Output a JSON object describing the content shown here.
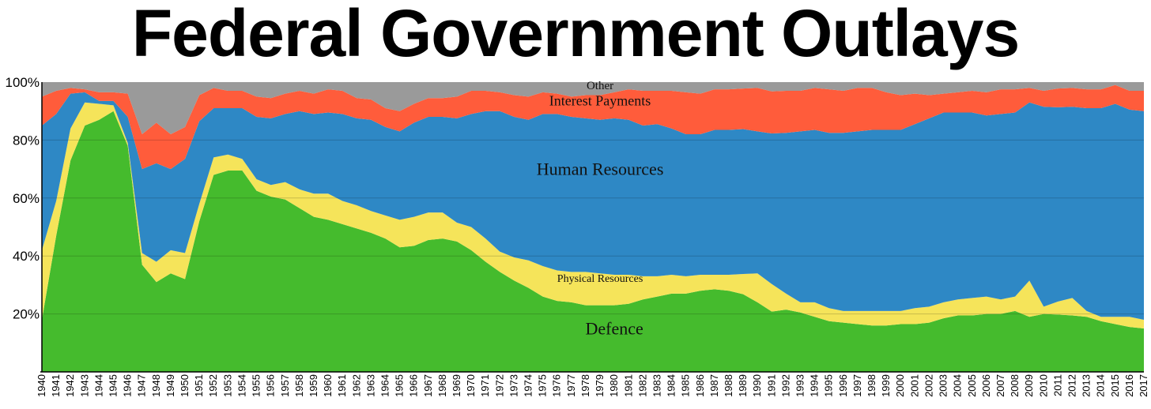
{
  "chart_data": {
    "type": "area",
    "title": "Federal Government Outlays",
    "stacked": true,
    "ylim": [
      0,
      100
    ],
    "yticks": [
      20,
      40,
      60,
      80,
      100
    ],
    "ytick_labels": [
      "20%",
      "40%",
      "60%",
      "80%",
      "100%"
    ],
    "grid": true,
    "x": [
      1940,
      1941,
      1942,
      1943,
      1944,
      1945,
      1946,
      1947,
      1948,
      1949,
      1950,
      1951,
      1952,
      1953,
      1954,
      1955,
      1956,
      1957,
      1958,
      1959,
      1960,
      1961,
      1962,
      1963,
      1964,
      1965,
      1966,
      1967,
      1968,
      1969,
      1970,
      1971,
      1972,
      1973,
      1974,
      1975,
      1976,
      1977,
      1978,
      1979,
      1980,
      1981,
      1982,
      1983,
      1984,
      1985,
      1986,
      1987,
      1988,
      1989,
      1990,
      1991,
      1992,
      1993,
      1994,
      1995,
      1996,
      1997,
      1998,
      1999,
      2000,
      2001,
      2002,
      2003,
      2004,
      2005,
      2006,
      2007,
      2008,
      2009,
      2010,
      2011,
      2012,
      2013,
      2014,
      2015,
      2016,
      2017
    ],
    "xtick_labels": [
      "1940",
      "1941",
      "1942",
      "1943",
      "1944",
      "1945",
      "1946",
      "1947",
      "1948",
      "1949",
      "1950",
      "1951",
      "1952",
      "1953",
      "1954",
      "1955",
      "1956",
      "1957",
      "1958",
      "1959",
      "1960",
      "1961",
      "1962",
      "1963",
      "1964",
      "1965",
      "1966",
      "1967",
      "1968",
      "1969",
      "1970",
      "1971",
      "1972",
      "1973",
      "1974",
      "1975",
      "1976",
      "1977",
      "1978",
      "1979",
      "1980",
      "1981",
      "1982",
      "1983",
      "1984",
      "1985",
      "1986",
      "1987",
      "1988",
      "1989",
      "1990",
      "1991",
      "1992",
      "1993",
      "1994",
      "1995",
      "1996",
      "1997",
      "1998",
      "1999",
      "2000",
      "2001",
      "2002",
      "2003",
      "2004",
      "2005",
      "2006",
      "2007",
      "2008",
      "2009",
      "2010",
      "2011",
      "2012",
      "2013",
      "2014",
      "2015",
      "2016",
      "2017"
    ],
    "series": [
      {
        "name": "Defence",
        "color": "#45bb2d",
        "label_year": 1980,
        "label_value": 13,
        "label_size": 22,
        "values": [
          18,
          47,
          73,
          85,
          87,
          90,
          78,
          37,
          31,
          34,
          32,
          52,
          68,
          69.5,
          69.5,
          62.5,
          60.5,
          59.5,
          56.5,
          53.5,
          52.5,
          51,
          49.5,
          48,
          46,
          43,
          43.5,
          45.5,
          46,
          45,
          42,
          38,
          34.5,
          31.5,
          29,
          26,
          24.5,
          24,
          23,
          23,
          23,
          23.5,
          25,
          26,
          27,
          27,
          28,
          28.5,
          28,
          26.8,
          24,
          20.8,
          21.5,
          20.5,
          19,
          17.5,
          17,
          16.5,
          16,
          16,
          16.5,
          16.5,
          17,
          18.5,
          19.5,
          19.5,
          20,
          20,
          21,
          19,
          20,
          19.8,
          19.5,
          19,
          17.5,
          16.5,
          15.5,
          15
        ]
      },
      {
        "name": "Physical Resources",
        "color": "#f5e45a",
        "label_year": 1979,
        "label_value": 31,
        "label_size": 14,
        "values": [
          24,
          12,
          11,
          8,
          5.5,
          2,
          1,
          4,
          7,
          8,
          9,
          6,
          6,
          5.5,
          4,
          4,
          4,
          6,
          6.5,
          8,
          9,
          8,
          8,
          7.5,
          8,
          9.5,
          10,
          9.5,
          9,
          6.5,
          8,
          8,
          7,
          8,
          9.5,
          10.5,
          10.5,
          10.5,
          11.5,
          11,
          10.5,
          10,
          8,
          7,
          6.5,
          6,
          5.5,
          5,
          5.5,
          7,
          10,
          9.5,
          5.5,
          3.5,
          5,
          4.5,
          4,
          4.5,
          5,
          5,
          4.5,
          5.5,
          5.5,
          5.5,
          5.5,
          6,
          6,
          5,
          5,
          12.5,
          2.5,
          4.5,
          6,
          2,
          1.5,
          2.5,
          3.5,
          3
        ]
      },
      {
        "name": "Human Resources",
        "color": "#2e88c5",
        "label_year": 1979,
        "label_value": 68,
        "label_size": 22,
        "values": [
          43,
          30,
          12,
          3.5,
          1,
          1.5,
          9,
          29,
          34,
          28,
          32.5,
          28.5,
          17,
          16,
          17.5,
          21.5,
          23,
          23.5,
          27,
          27.5,
          28,
          30,
          30,
          31.5,
          30.5,
          30.5,
          32.5,
          33,
          33,
          36,
          39,
          44,
          48.5,
          48.5,
          48.5,
          52.5,
          54,
          53.5,
          53,
          53,
          54,
          53.5,
          52,
          52.5,
          50.5,
          49,
          48.5,
          50,
          50,
          50,
          49,
          52,
          55.5,
          59,
          59.5,
          60.5,
          61.5,
          62,
          62.5,
          62.5,
          62.5,
          63.5,
          65,
          65.5,
          64.5,
          64,
          62.5,
          64,
          63.5,
          61.5,
          69,
          67,
          66,
          70,
          72,
          73.5,
          71.5,
          72
        ]
      },
      {
        "name": "Interest Payments",
        "color": "#ff5c3b",
        "label_year": 1979,
        "label_value": 92,
        "label_size": 18,
        "values": [
          10,
          8,
          2,
          1,
          3,
          3,
          8,
          12,
          14,
          12,
          11,
          9,
          7,
          6,
          6,
          7,
          7,
          7,
          7,
          7,
          8,
          8,
          7,
          7,
          6.5,
          7,
          6.5,
          6.5,
          6.5,
          7.5,
          8,
          7,
          6.5,
          7.5,
          8,
          7.5,
          7,
          7,
          8,
          8.5,
          9,
          10.5,
          12,
          11.5,
          13,
          14.5,
          14,
          14,
          14,
          14,
          15,
          14.5,
          14.5,
          14,
          14.5,
          15,
          14.5,
          15,
          14.5,
          13,
          12,
          10.5,
          8,
          6.5,
          7,
          7.5,
          8,
          8.5,
          8,
          5,
          5.5,
          6.5,
          6.5,
          6.5,
          6.5,
          6.5,
          6.5,
          7
        ]
      },
      {
        "name": "Other",
        "color": "#9a9a9a",
        "label_year": 1979,
        "label_value": 97.5,
        "label_size": 15,
        "values": [
          5,
          3,
          2,
          2.5,
          3.5,
          3.5,
          4,
          18,
          14,
          18,
          15.5,
          4.5,
          2,
          3,
          3,
          5,
          5.5,
          4,
          3,
          4.5,
          2.5,
          3,
          5.5,
          6,
          9,
          10,
          7.5,
          5.5,
          5.5,
          5,
          3,
          3,
          3.5,
          4.5,
          5,
          3.5,
          4,
          5,
          4.5,
          4.5,
          3,
          2.5,
          3,
          3,
          3,
          3.5,
          4,
          2.5,
          2.5,
          2.2,
          2,
          3.2,
          3,
          3,
          2,
          3,
          3,
          2,
          2.5,
          3.5,
          4.5,
          3.5,
          3.5,
          3.5,
          3.5,
          3,
          3.5,
          2.5,
          2.5,
          2,
          3,
          2.2,
          3,
          2.5,
          2.5,
          1,
          3,
          3
        ]
      }
    ]
  }
}
